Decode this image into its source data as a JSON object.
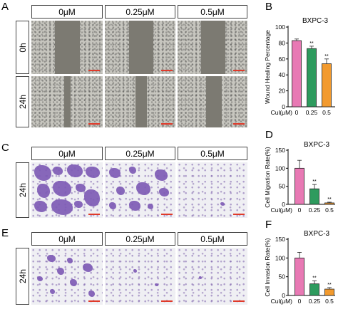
{
  "panels": {
    "A": "A",
    "B": "B",
    "C": "C",
    "D": "D",
    "E": "E",
    "F": "F"
  },
  "headers": {
    "A": [
      "0μM",
      "0.25μM",
      "0.5μM"
    ],
    "C": [
      "0μM",
      "0.25μM",
      "0.5μM"
    ],
    "E": [
      "0μM",
      "0.25μM",
      "0.5μM"
    ]
  },
  "row_labels": {
    "A": [
      "0h",
      "24h"
    ],
    "C": [
      "24h"
    ],
    "E": [
      "24h"
    ]
  },
  "colors": {
    "bar_0": "#e879b4",
    "bar_025": "#2e9b5e",
    "bar_05": "#f29a2e",
    "scalebar": "#e03a2a"
  },
  "chart_data": [
    {
      "type": "bar",
      "panel": "B",
      "title": "BXPC-3",
      "ylabel": "Wound Healing Percentage",
      "xlabel": "Cul(μM)",
      "categories": [
        "0",
        "0.25",
        "0.5"
      ],
      "values": [
        83,
        73,
        54
      ],
      "errors": [
        2,
        3,
        6
      ],
      "significance": [
        "",
        "**",
        "**"
      ],
      "ylim": [
        0,
        100
      ],
      "yticks": [
        0,
        20,
        40,
        60,
        80,
        100
      ]
    },
    {
      "type": "bar",
      "panel": "D",
      "title": "BXPC-3",
      "ylabel": "Cell Migration Rate(%)",
      "xlabel": "Cul(μM)",
      "categories": [
        "0",
        "0.25",
        "0.5"
      ],
      "values": [
        100,
        43,
        4
      ],
      "errors": [
        22,
        12,
        2
      ],
      "significance": [
        "",
        "**",
        "**"
      ],
      "ylim": [
        0,
        150
      ],
      "yticks": [
        0,
        50,
        100,
        150
      ]
    },
    {
      "type": "bar",
      "panel": "F",
      "title": "BXPC-3",
      "ylabel": "Cell Invasion Rate(%)",
      "xlabel": "Cul(μM)",
      "categories": [
        "0",
        "0.25",
        "0.5"
      ],
      "values": [
        100,
        31,
        17
      ],
      "errors": [
        15,
        8,
        4
      ],
      "significance": [
        "",
        "**",
        "**"
      ],
      "ylim": [
        0,
        150
      ],
      "yticks": [
        0,
        50,
        100,
        150
      ]
    }
  ]
}
